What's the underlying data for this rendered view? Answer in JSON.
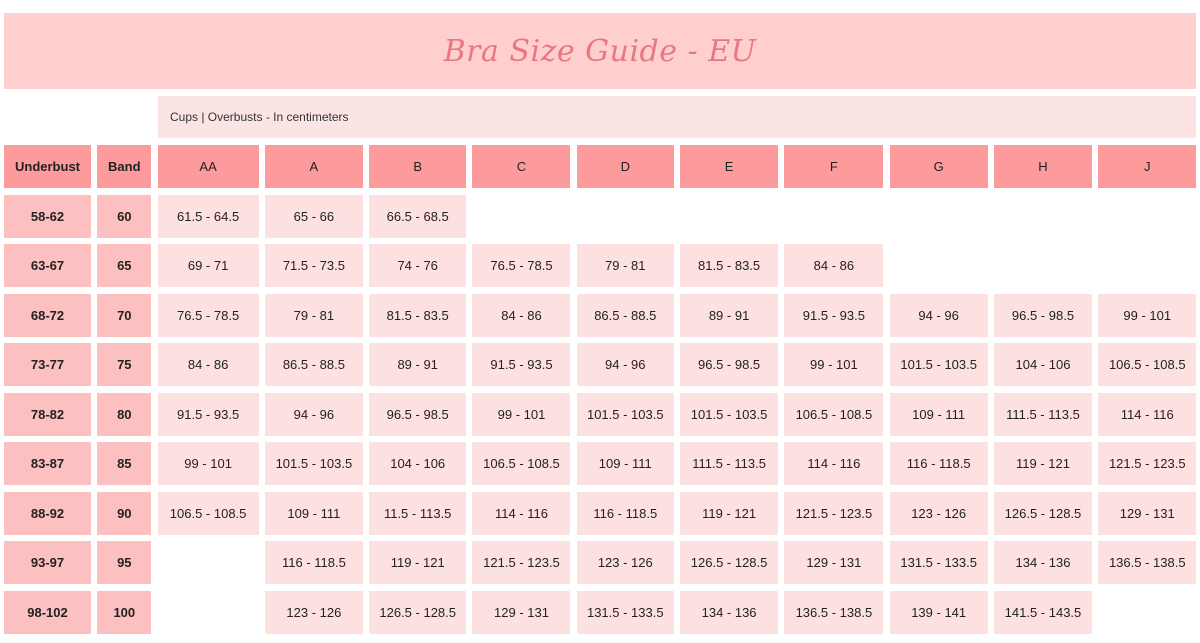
{
  "title": "Bra Size Guide - EU",
  "subtitle": "Cups | Overbusts - In centimeters",
  "colors": {
    "title_bg": "#ffcfcf",
    "title_text": "#e8787e",
    "header": "#fd9a9c",
    "label_cell": "#fdc0c0",
    "data_cell": "#fde1e1"
  },
  "table": {
    "headers": [
      "Underbust",
      "Band",
      "AA",
      "A",
      "B",
      "C",
      "D",
      "E",
      "F",
      "G",
      "H",
      "J"
    ],
    "rows": [
      {
        "underbust": "58-62",
        "band": "60",
        "cups": [
          "61.5 - 64.5",
          "65 - 66",
          "66.5 - 68.5",
          null,
          null,
          null,
          null,
          null,
          null,
          null
        ]
      },
      {
        "underbust": "63-67",
        "band": "65",
        "cups": [
          "69 - 71",
          "71.5 - 73.5",
          "74 - 76",
          "76.5 - 78.5",
          "79 - 81",
          "81.5 - 83.5",
          "84 - 86",
          null,
          null,
          null
        ]
      },
      {
        "underbust": "68-72",
        "band": "70",
        "cups": [
          "76.5 - 78.5",
          "79 - 81",
          "81.5 - 83.5",
          "84 - 86",
          "86.5 - 88.5",
          "89 - 91",
          "91.5 - 93.5",
          "94 - 96",
          "96.5 - 98.5",
          "99 - 101"
        ]
      },
      {
        "underbust": "73-77",
        "band": "75",
        "cups": [
          "84 - 86",
          "86.5 - 88.5",
          "89 - 91",
          "91.5 - 93.5",
          "94 - 96",
          "96.5 - 98.5",
          "99 - 101",
          "101.5 - 103.5",
          "104 - 106",
          "106.5 - 108.5"
        ]
      },
      {
        "underbust": "78-82",
        "band": "80",
        "cups": [
          "91.5 - 93.5",
          "94 - 96",
          "96.5 - 98.5",
          "99 - 101",
          "101.5 - 103.5",
          "101.5 - 103.5",
          "106.5 - 108.5",
          "109 - 111",
          "111.5 - 113.5",
          "114 - 116"
        ]
      },
      {
        "underbust": "83-87",
        "band": "85",
        "cups": [
          "99 - 101",
          "101.5 - 103.5",
          "104 - 106",
          "106.5 - 108.5",
          "109 - 111",
          "111.5 - 113.5",
          "114 - 116",
          "116 - 118.5",
          "119 - 121",
          "121.5 - 123.5"
        ]
      },
      {
        "underbust": "88-92",
        "band": "90",
        "cups": [
          "106.5 - 108.5",
          "109 - 111",
          "11.5 - 113.5",
          "114 - 116",
          "116 - 118.5",
          "119 - 121",
          "121.5 - 123.5",
          "123 - 126",
          "126.5 - 128.5",
          "129 - 131"
        ]
      },
      {
        "underbust": "93-97",
        "band": "95",
        "cups": [
          null,
          "116 - 118.5",
          "119 - 121",
          "121.5 - 123.5",
          "123 - 126",
          "126.5 - 128.5",
          "129 - 131",
          "131.5 - 133.5",
          "134 - 136",
          "136.5 - 138.5"
        ]
      },
      {
        "underbust": "98-102",
        "band": "100",
        "cups": [
          null,
          "123 - 126",
          "126.5 - 128.5",
          "129 - 131",
          "131.5 - 133.5",
          "134 - 136",
          "136.5 - 138.5",
          "139 - 141",
          "141.5 - 143.5",
          null
        ]
      }
    ]
  }
}
